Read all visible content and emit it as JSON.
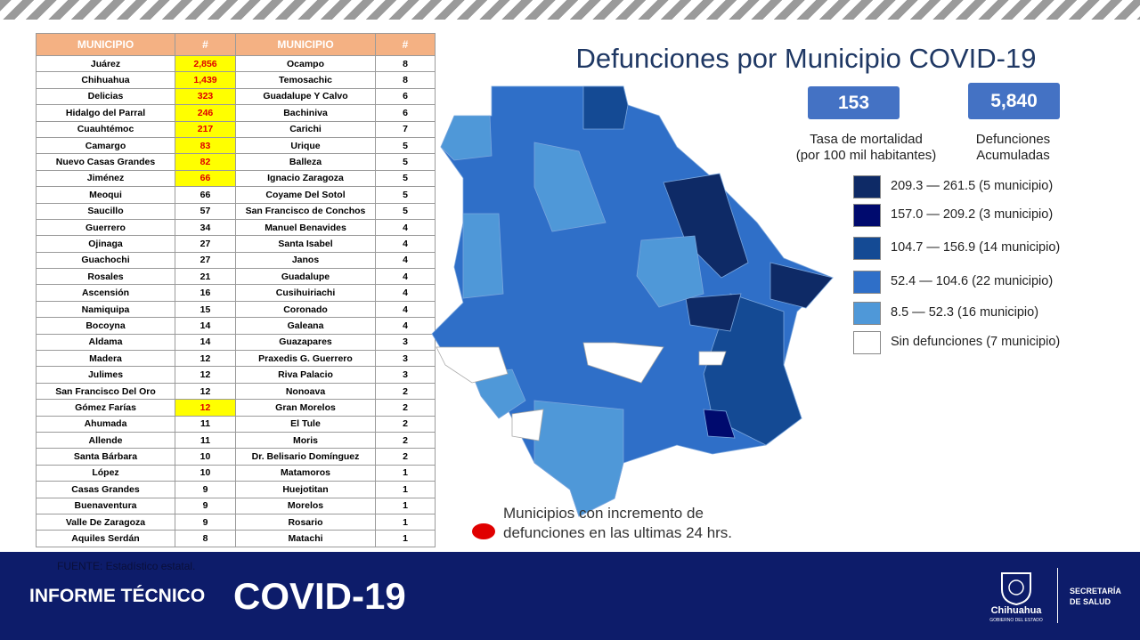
{
  "table": {
    "header": [
      "MUNICIPIO",
      "#",
      "MUNICIPIO",
      "#"
    ],
    "rows": [
      [
        "Juárez",
        "2,856",
        "Ocampo",
        8
      ],
      [
        "Chihuahua",
        "1,439",
        "Temosachic",
        8
      ],
      [
        "Delicias",
        323,
        "Guadalupe Y Calvo",
        6
      ],
      [
        "Hidalgo del Parral",
        246,
        "Bachiniva",
        6
      ],
      [
        "Cuauhtémoc",
        217,
        "Carichi",
        7
      ],
      [
        "Camargo",
        83,
        "Urique",
        5
      ],
      [
        "Nuevo Casas Grandes",
        82,
        "Balleza",
        5
      ],
      [
        "Jiménez",
        66,
        "Ignacio Zaragoza",
        5
      ],
      [
        "Meoqui",
        66,
        "Coyame Del Sotol",
        5
      ],
      [
        "Saucillo",
        57,
        "San Francisco de Conchos",
        5
      ],
      [
        "Guerrero",
        34,
        "Manuel Benavides",
        4
      ],
      [
        "Ojinaga",
        27,
        "Santa Isabel",
        4
      ],
      [
        "Guachochi",
        27,
        "Janos",
        4
      ],
      [
        "Rosales",
        21,
        "Guadalupe",
        4
      ],
      [
        "Ascensión",
        16,
        "Cusihuiriachi",
        4
      ],
      [
        "Namiquipa",
        15,
        "Coronado",
        4
      ],
      [
        "Bocoyna",
        14,
        "Galeana",
        4
      ],
      [
        "Aldama",
        14,
        "Guazapares",
        3
      ],
      [
        "Madera",
        12,
        "Praxedis G. Guerrero",
        3
      ],
      [
        "Julimes",
        12,
        "Riva Palacio",
        3
      ],
      [
        "San Francisco Del Oro",
        12,
        "Nonoava",
        2
      ],
      [
        "Gómez Farías",
        12,
        "Gran Morelos",
        2
      ],
      [
        "Ahumada",
        11,
        "El Tule",
        2
      ],
      [
        "Allende",
        11,
        "Moris",
        2
      ],
      [
        "Santa Bárbara",
        10,
        "Dr. Belisario Domínguez",
        2
      ],
      [
        "López",
        10,
        "Matamoros",
        1
      ],
      [
        "Casas Grandes",
        9,
        "Huejotitan",
        1
      ],
      [
        "Buenaventura",
        9,
        "Morelos",
        1
      ],
      [
        "Valle De Zaragoza",
        9,
        "Rosario",
        1
      ],
      [
        "Aquiles Serdán",
        8,
        "Matachi",
        1
      ]
    ],
    "highlighted_rows": [
      0,
      1,
      2,
      3,
      4,
      5,
      6,
      7,
      21
    ],
    "highlight_color": "#ffff00"
  },
  "title": "Defunciones por Municipio COVID-19",
  "stats": [
    {
      "value": 153,
      "label": "Tasa de mortalidad\n(por 100 mil habitantes)"
    },
    {
      "value": "5,840",
      "label": "Defunciones\nAcumuladas"
    }
  ],
  "legend": [
    {
      "label": "209.3 — 261.5 (5 municipio)",
      "color": "#0e2a66"
    },
    {
      "label": "157.0 — 209.2 (3 municipio)",
      "color": "#000a6e"
    },
    {
      "label": "104.7 — 156.9 (14 municipio)",
      "color": "#144a94"
    },
    {
      "label": "52.4 — 104.6 (22 municipio)",
      "color": "#2f6fc8"
    },
    {
      "label": "8.5 — 52.3 (16 municipio)",
      "color": "#4f98d8"
    },
    {
      "label": "Sin defunciones (7 municipio)",
      "color": "#ffffff"
    }
  ],
  "note": "Municipios con incremento de\ndefunciones en las ultimas 24 hrs.",
  "footer": {
    "source": "FUENTE: Estadístico estatal.",
    "report": "INFORME TÉCNICO",
    "covid": "COVID-19",
    "logo_name": "Chihuahua",
    "logo_sub": "GOBIERNO DEL ESTADO",
    "dept": "SECRETARÍA\nDE SALUD"
  }
}
